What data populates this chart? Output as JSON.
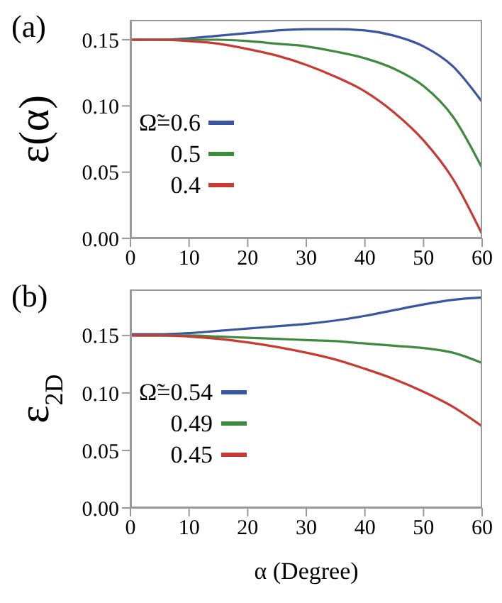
{
  "chart_data": [
    {
      "type": "line",
      "title": "(a)",
      "ylabel": "ε(α)",
      "x": [
        0,
        5,
        10,
        15,
        20,
        25,
        30,
        35,
        40,
        45,
        50,
        55,
        60
      ],
      "series": [
        {
          "name": "Ω̃=0.6",
          "color": "#3b55a0",
          "values": [
            0.15,
            0.15,
            0.151,
            0.153,
            0.155,
            0.157,
            0.158,
            0.158,
            0.157,
            0.153,
            0.145,
            0.13,
            0.103
          ]
        },
        {
          "name": "0.5",
          "color": "#3f8a3f",
          "values": [
            0.15,
            0.15,
            0.15,
            0.15,
            0.149,
            0.147,
            0.145,
            0.141,
            0.136,
            0.128,
            0.115,
            0.092,
            0.053
          ]
        },
        {
          "name": "0.4",
          "color": "#c83a34",
          "values": [
            0.15,
            0.15,
            0.149,
            0.147,
            0.143,
            0.138,
            0.131,
            0.122,
            0.111,
            0.095,
            0.074,
            0.045,
            0.003
          ]
        }
      ],
      "xlim": [
        0,
        60
      ],
      "xticks": [
        0,
        10,
        20,
        30,
        40,
        50,
        60
      ],
      "ylim": [
        0,
        0.165
      ],
      "yticks": [
        {
          "value": 0,
          "label": "0.00"
        },
        {
          "value": 0.05,
          "label": "0.05"
        },
        {
          "value": 0.1,
          "label": "0.10"
        },
        {
          "value": 0.15,
          "label": "0.15"
        }
      ],
      "legend": "left",
      "marker": "none"
    },
    {
      "type": "line",
      "title": "(b)",
      "ylabel": "ε$_{2D}$",
      "xlabel": "α (Degree)",
      "x": [
        0,
        5,
        10,
        15,
        20,
        25,
        30,
        35,
        40,
        45,
        50,
        55,
        60
      ],
      "series": [
        {
          "name": "Ω̃=0.54",
          "color": "#3b55a0",
          "values": [
            0.151,
            0.151,
            0.152,
            0.154,
            0.156,
            0.158,
            0.16,
            0.163,
            0.167,
            0.172,
            0.177,
            0.181,
            0.183
          ]
        },
        {
          "name": "0.49",
          "color": "#3f8a3f",
          "values": [
            0.15,
            0.15,
            0.15,
            0.149,
            0.148,
            0.147,
            0.146,
            0.145,
            0.143,
            0.141,
            0.139,
            0.135,
            0.126
          ]
        },
        {
          "name": "0.45",
          "color": "#c83a34",
          "values": [
            0.15,
            0.15,
            0.149,
            0.147,
            0.144,
            0.14,
            0.135,
            0.129,
            0.121,
            0.112,
            0.101,
            0.088,
            0.071
          ]
        }
      ],
      "xlim": [
        0,
        60
      ],
      "xticks": [
        0,
        10,
        20,
        30,
        40,
        50,
        60
      ],
      "ylim": [
        0,
        0.19
      ],
      "yticks": [
        {
          "value": 0,
          "label": "0.00"
        },
        {
          "value": 0.05,
          "label": "0.05"
        },
        {
          "value": 0.1,
          "label": "0.10"
        },
        {
          "value": 0.15,
          "label": "0.15"
        }
      ],
      "legend": "left",
      "marker": "none"
    }
  ]
}
